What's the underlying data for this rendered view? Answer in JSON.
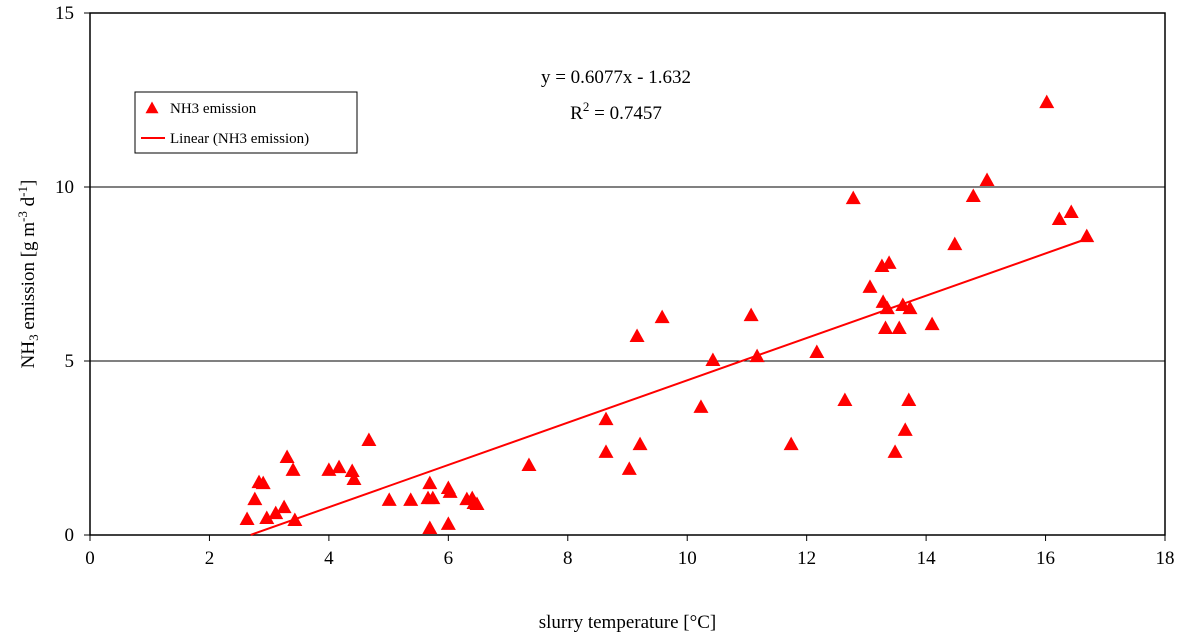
{
  "chart_data": {
    "type": "scatter",
    "x_label": "slurry temperature [°C]",
    "y_label_parts": [
      "NH",
      "3",
      " emission [g m",
      "-3",
      " d",
      "-1",
      "]"
    ],
    "xlim": [
      0,
      18
    ],
    "xticks": [
      0,
      2,
      4,
      6,
      8,
      10,
      12,
      14,
      16,
      18
    ],
    "ylim": [
      0,
      15
    ],
    "yticks": [
      0,
      5,
      10,
      15
    ],
    "grid": true,
    "legend_position": "upper-left",
    "series": [
      {
        "name": "NH3 emission",
        "color": "#ff0000",
        "x": [
          2.63,
          2.76,
          2.83,
          2.9,
          2.96,
          3.11,
          3.25,
          3.3,
          3.4,
          3.43,
          4.0,
          4.17,
          4.39,
          4.42,
          4.67,
          5.01,
          5.37,
          5.69,
          5.66,
          5.74,
          5.69,
          6.0,
          6.03,
          6.0,
          6.31,
          6.4,
          6.43,
          6.48,
          7.35,
          8.64,
          8.64,
          9.03,
          9.16,
          9.21,
          9.58,
          10.23,
          10.43,
          11.07,
          11.17,
          11.74,
          12.17,
          12.64,
          12.78,
          13.06,
          13.26,
          13.38,
          13.28,
          13.35,
          13.32,
          13.48,
          13.55,
          13.61,
          13.65,
          13.73,
          13.71,
          14.1,
          14.48,
          14.79,
          15.02,
          16.02,
          16.23,
          16.43,
          16.69
        ],
        "values": [
          0.46,
          1.03,
          1.52,
          1.49,
          0.49,
          0.63,
          0.8,
          2.24,
          1.87,
          0.43,
          1.87,
          1.95,
          1.84,
          1.61,
          2.73,
          1.01,
          1.01,
          1.49,
          1.06,
          1.06,
          0.2,
          1.35,
          1.24,
          0.32,
          1.03,
          1.06,
          0.92,
          0.89,
          2.01,
          3.33,
          2.39,
          1.9,
          5.72,
          2.61,
          6.26,
          3.68,
          5.03,
          6.32,
          5.14,
          2.61,
          5.26,
          3.88,
          9.68,
          7.13,
          7.73,
          7.82,
          6.7,
          6.52,
          5.95,
          2.39,
          5.95,
          6.61,
          3.02,
          6.52,
          3.88,
          6.06,
          8.36,
          9.74,
          10.2,
          12.44,
          9.08,
          9.28,
          8.59
        ]
      }
    ],
    "trendline": {
      "name": "Linear (NH3 emission)",
      "color": "#ff0000",
      "slope": 0.6077,
      "intercept": -1.632,
      "x_range": [
        2.69,
        16.7
      ],
      "equation": "y = 0.6077x - 1.632",
      "r2_parts": [
        "R",
        "2",
        " = 0.7457"
      ]
    }
  }
}
